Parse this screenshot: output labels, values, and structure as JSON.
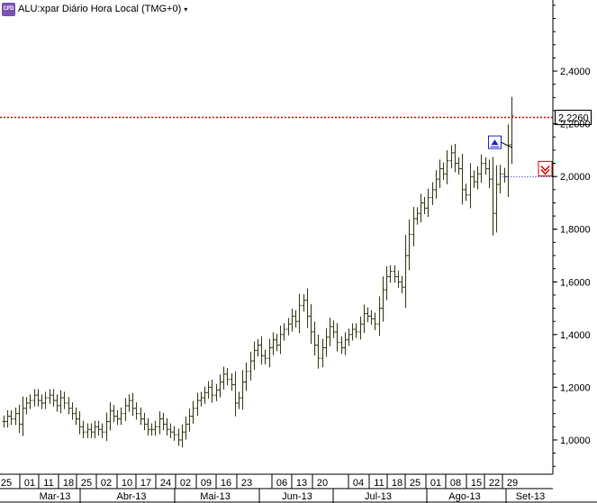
{
  "header": {
    "badge": "CFD",
    "title": "ALU:xpar Diário Hora Local (TMG+0)",
    "menu_arrow": "▾",
    "menu_icon": "chevron-down-icon"
  },
  "chart_data": {
    "type": "ohlc",
    "title": "ALU:xpar Diário Hora Local (TMG+0)",
    "xlabel": "",
    "ylabel": "",
    "ylim": [
      0.87,
      2.67
    ],
    "y_ticks": [
      1.0,
      1.2,
      1.4,
      1.6,
      1.8,
      2.0,
      2.2,
      2.4
    ],
    "y_tick_labels": [
      "1,0000",
      "1,2000",
      "1,4000",
      "1,6000",
      "1,8000",
      "2,0000",
      "2,2000",
      "2,4000"
    ],
    "day_ticks": [
      "25",
      "01",
      "11",
      "18",
      "25",
      "02",
      "10",
      "17",
      "24",
      "02",
      "09",
      "16",
      "23",
      "06",
      "13",
      "20",
      "04",
      "11",
      "18",
      "25",
      "01",
      "08",
      "15",
      "22",
      "29"
    ],
    "month_labels": [
      "Mar-13",
      "Abr-13",
      "Mai-13",
      "Jun-13",
      "Jul-13",
      "Ago-13",
      "Set-13"
    ],
    "current_price": 2.226,
    "current_price_label": "2,2260",
    "price_line_color": "#e00000",
    "reference_level": 2.0,
    "bar_color": "#3a3a1a",
    "annotations": [
      {
        "type": "buy-marker",
        "icon": "up-arrow-icon",
        "near_value": 2.13,
        "color": "#2020c8"
      },
      {
        "type": "sell-marker",
        "icon": "down-arrow-icon",
        "near_value": 2.03,
        "color": "#e00000"
      }
    ],
    "series": [
      {
        "values": [
          1.07,
          1.09,
          1.08,
          1.1,
          1.06,
          1.12,
          1.14,
          1.15,
          1.17,
          1.15,
          1.14,
          1.16,
          1.17,
          1.15,
          1.13,
          1.16,
          1.14,
          1.12,
          1.1,
          1.08,
          1.05,
          1.03,
          1.04,
          1.03,
          1.05,
          1.04,
          1.03,
          1.07,
          1.11,
          1.09,
          1.08,
          1.1,
          1.13,
          1.15,
          1.12,
          1.1,
          1.08,
          1.06,
          1.04,
          1.04,
          1.05,
          1.08,
          1.06,
          1.04,
          1.03,
          1.02,
          1.0,
          1.03,
          1.06,
          1.09,
          1.12,
          1.15,
          1.16,
          1.18,
          1.2,
          1.17,
          1.19,
          1.22,
          1.25,
          1.23,
          1.21,
          1.14,
          1.16,
          1.22,
          1.26,
          1.3,
          1.34,
          1.36,
          1.32,
          1.31,
          1.35,
          1.38,
          1.36,
          1.4,
          1.42,
          1.44,
          1.47,
          1.45,
          1.51,
          1.53,
          1.47,
          1.41,
          1.36,
          1.31,
          1.35,
          1.39,
          1.43,
          1.41,
          1.37,
          1.35,
          1.38,
          1.4,
          1.42,
          1.41,
          1.44,
          1.48,
          1.47,
          1.46,
          1.44,
          1.5,
          1.57,
          1.62,
          1.64,
          1.62,
          1.6,
          1.58,
          1.7,
          1.78,
          1.84,
          1.86,
          1.9,
          1.88,
          1.92,
          1.95,
          1.99,
          2.03,
          2.01,
          2.06,
          2.09,
          2.05,
          2.03,
          1.95,
          1.93,
          2.0,
          1.98,
          2.01,
          2.05,
          2.03,
          1.99,
          1.86,
          1.97,
          2.01,
          2.0,
          2.12,
          2.23
        ]
      }
    ]
  }
}
